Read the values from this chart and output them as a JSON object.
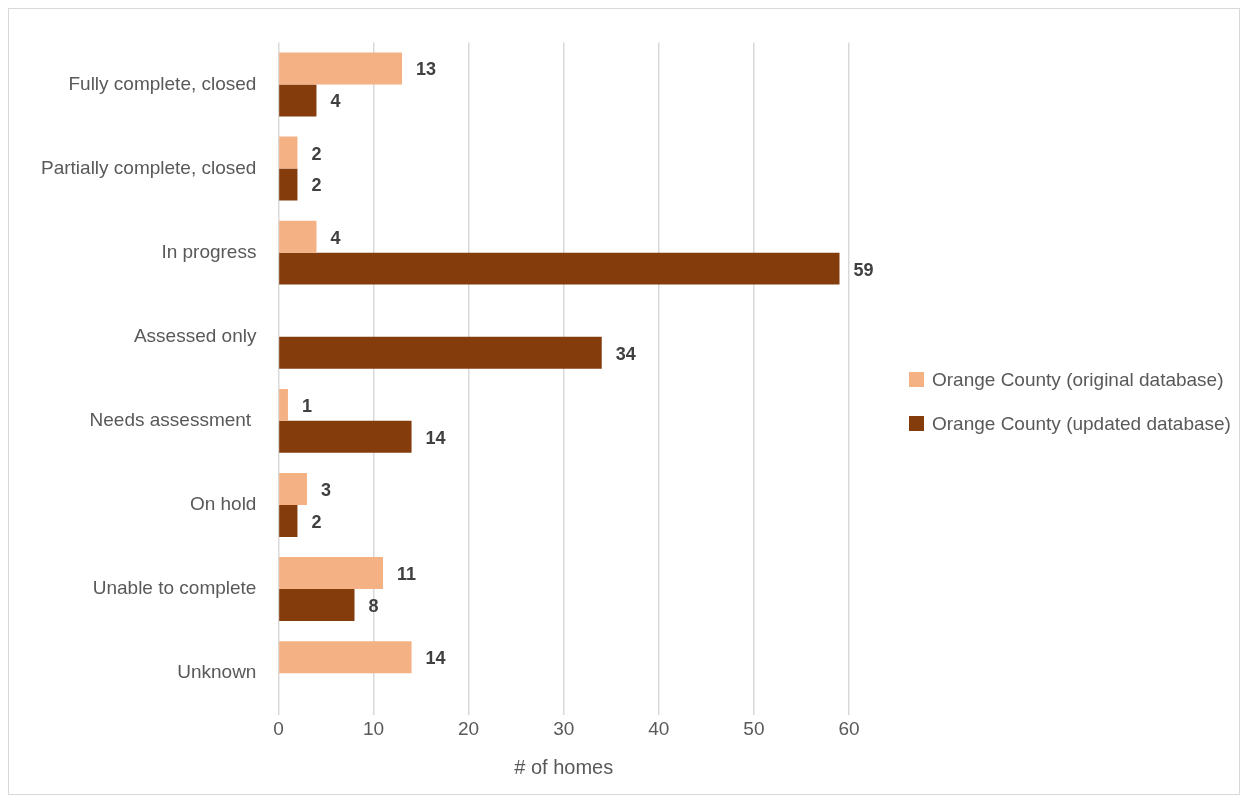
{
  "chart_data": {
    "type": "bar",
    "orientation": "horizontal",
    "xlabel": "# of homes",
    "categories": [
      "Fully complete, closed",
      "Partially complete, closed",
      "In progress",
      "Assessed only",
      "Needs assessment ",
      "On hold",
      "Unable to complete",
      "Unknown"
    ],
    "series": [
      {
        "name": "Orange County (original database)",
        "color": "#f4b183",
        "values": [
          13,
          2,
          4,
          null,
          1,
          3,
          11,
          14
        ]
      },
      {
        "name": "Orange County (updated database)",
        "color": "#843c0c",
        "values": [
          4,
          2,
          59,
          34,
          14,
          2,
          8,
          null
        ]
      }
    ],
    "xlim": [
      0,
      60
    ],
    "xticks": [
      0,
      10,
      20,
      30,
      40,
      50,
      60
    ],
    "grid": "x",
    "legend": "right",
    "data_labels": true
  }
}
